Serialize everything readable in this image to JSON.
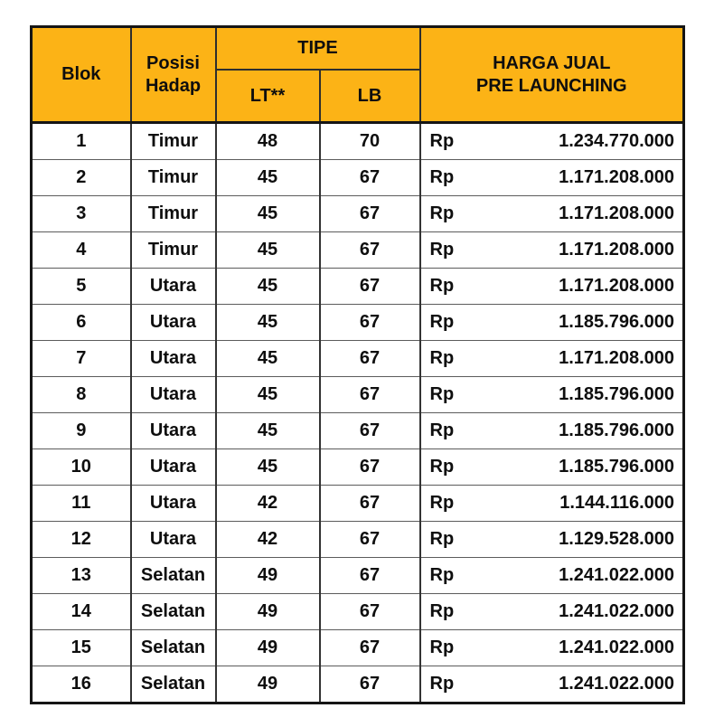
{
  "table": {
    "header_bg": "#FCB316",
    "header": {
      "blok": "Blok",
      "posisi_line1": "Posisi",
      "posisi_line2": "Hadap",
      "tipe": "TIPE",
      "lt": "LT**",
      "lb": "LB",
      "harga_line1": "HARGA JUAL",
      "harga_line2": "PRE LAUNCHING"
    },
    "currency_prefix": "Rp",
    "rows": [
      {
        "blok": "1",
        "posisi": "Timur",
        "lt": "48",
        "lb": "70",
        "harga": "1.234.770.000"
      },
      {
        "blok": "2",
        "posisi": "Timur",
        "lt": "45",
        "lb": "67",
        "harga": "1.171.208.000"
      },
      {
        "blok": "3",
        "posisi": "Timur",
        "lt": "45",
        "lb": "67",
        "harga": "1.171.208.000"
      },
      {
        "blok": "4",
        "posisi": "Timur",
        "lt": "45",
        "lb": "67",
        "harga": "1.171.208.000"
      },
      {
        "blok": "5",
        "posisi": "Utara",
        "lt": "45",
        "lb": "67",
        "harga": "1.171.208.000"
      },
      {
        "blok": "6",
        "posisi": "Utara",
        "lt": "45",
        "lb": "67",
        "harga": "1.185.796.000"
      },
      {
        "blok": "7",
        "posisi": "Utara",
        "lt": "45",
        "lb": "67",
        "harga": "1.171.208.000"
      },
      {
        "blok": "8",
        "posisi": "Utara",
        "lt": "45",
        "lb": "67",
        "harga": "1.185.796.000"
      },
      {
        "blok": "9",
        "posisi": "Utara",
        "lt": "45",
        "lb": "67",
        "harga": "1.185.796.000"
      },
      {
        "blok": "10",
        "posisi": "Utara",
        "lt": "45",
        "lb": "67",
        "harga": "1.185.796.000"
      },
      {
        "blok": "11",
        "posisi": "Utara",
        "lt": "42",
        "lb": "67",
        "harga": "1.144.116.000"
      },
      {
        "blok": "12",
        "posisi": "Utara",
        "lt": "42",
        "lb": "67",
        "harga": "1.129.528.000"
      },
      {
        "blok": "13",
        "posisi": "Selatan",
        "lt": "49",
        "lb": "67",
        "harga": "1.241.022.000"
      },
      {
        "blok": "14",
        "posisi": "Selatan",
        "lt": "49",
        "lb": "67",
        "harga": "1.241.022.000"
      },
      {
        "blok": "15",
        "posisi": "Selatan",
        "lt": "49",
        "lb": "67",
        "harga": "1.241.022.000"
      },
      {
        "blok": "16",
        "posisi": "Selatan",
        "lt": "49",
        "lb": "67",
        "harga": "1.241.022.000"
      }
    ]
  }
}
